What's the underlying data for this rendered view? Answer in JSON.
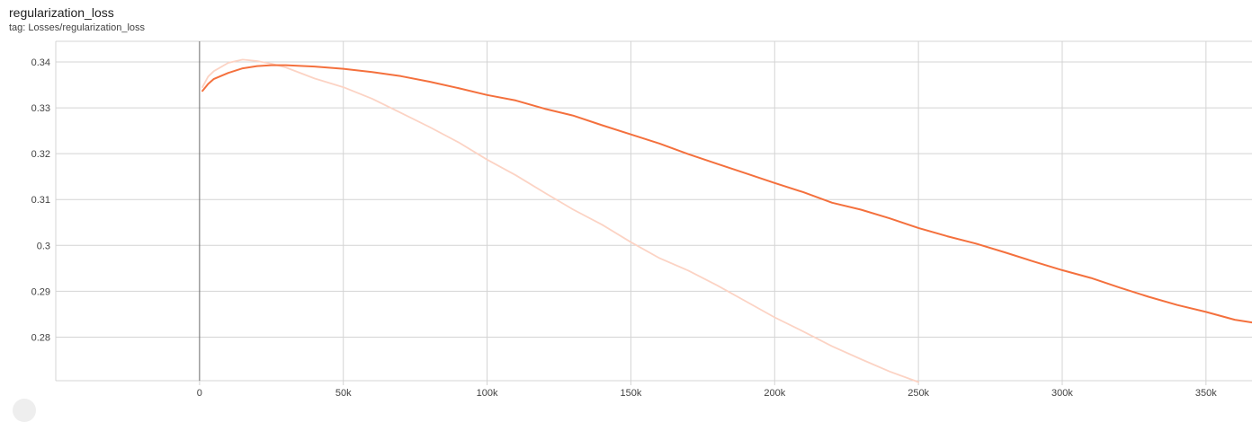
{
  "card": {
    "title": "regularization_loss",
    "tag": "tag: Losses/regularization_loss"
  },
  "colors": {
    "smoothed": "#f4703d",
    "raw": "#fcd3c4",
    "grid": "#d4d4d4",
    "zero_axis": "#6b6b6b"
  },
  "chart_data": {
    "type": "line",
    "title": "regularization_loss",
    "xlabel": "",
    "ylabel": "",
    "xlim": [
      -50000,
      366000
    ],
    "ylim": [
      0.2705,
      0.3445
    ],
    "x_ticks": [
      0,
      50000,
      100000,
      150000,
      200000,
      250000,
      300000,
      350000
    ],
    "x_tick_labels": [
      "0",
      "50k",
      "100k",
      "150k",
      "200k",
      "250k",
      "300k",
      "350k"
    ],
    "y_ticks": [
      0.28,
      0.29,
      0.3,
      0.31,
      0.32,
      0.33,
      0.34
    ],
    "y_tick_labels": [
      "0.28",
      "0.29",
      "0.3",
      "0.31",
      "0.32",
      "0.33",
      "0.34"
    ],
    "grid": true,
    "legend": "none",
    "series": [
      {
        "role": "smoothed",
        "x": [
          1000,
          3000,
          5000,
          10000,
          15000,
          20000,
          25000,
          30000,
          40000,
          50000,
          60000,
          70000,
          80000,
          90000,
          100000,
          110000,
          120000,
          130000,
          140000,
          150000,
          160000,
          170000,
          180000,
          190000,
          200000,
          210000,
          220000,
          230000,
          240000,
          250000,
          260000,
          270000,
          280000,
          290000,
          300000,
          310000,
          320000,
          330000,
          340000,
          350000,
          360000,
          366000
        ],
        "y": [
          0.3337,
          0.3352,
          0.3363,
          0.3376,
          0.3386,
          0.3391,
          0.3393,
          0.3393,
          0.339,
          0.3385,
          0.3378,
          0.3369,
          0.3357,
          0.3343,
          0.3328,
          0.3316,
          0.3298,
          0.3283,
          0.3262,
          0.3242,
          0.3222,
          0.3199,
          0.3178,
          0.3157,
          0.3136,
          0.3116,
          0.3093,
          0.3078,
          0.3059,
          0.3038,
          0.302,
          0.3004,
          0.2985,
          0.2965,
          0.2946,
          0.2929,
          0.2908,
          0.2888,
          0.287,
          0.2855,
          0.2838,
          0.2832
        ]
      },
      {
        "role": "raw",
        "x": [
          1000,
          3000,
          5000,
          10000,
          15000,
          20000,
          25000,
          30000,
          40000,
          50000,
          60000,
          70000,
          80000,
          90000,
          100000,
          110000,
          120000,
          130000,
          140000,
          150000,
          160000,
          170000,
          180000,
          190000,
          200000,
          210000,
          220000,
          230000,
          240000,
          250000
        ],
        "y": [
          0.3345,
          0.3368,
          0.338,
          0.3398,
          0.3405,
          0.3402,
          0.3396,
          0.3388,
          0.3364,
          0.3345,
          0.332,
          0.3289,
          0.3258,
          0.3225,
          0.3187,
          0.3153,
          0.3115,
          0.3078,
          0.3045,
          0.3007,
          0.2972,
          0.2945,
          0.2913,
          0.2878,
          0.2843,
          0.2812,
          0.278,
          0.2752,
          0.2725,
          0.2702
        ]
      }
    ]
  }
}
